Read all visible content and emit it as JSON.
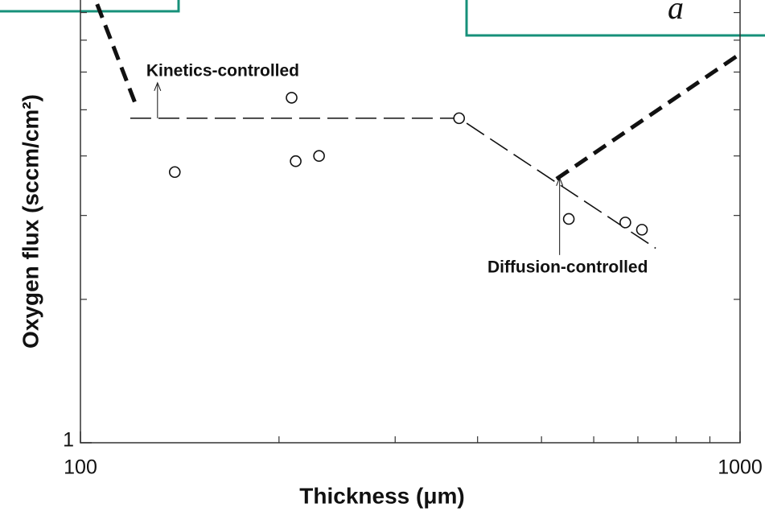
{
  "chart_data": {
    "type": "scatter",
    "xlabel": "Thickness (μm)",
    "ylabel": "Oxygen flux (sccm/cm²)",
    "x": [
      139,
      209,
      212,
      230,
      375,
      550,
      670,
      710
    ],
    "values": [
      3.7,
      5.3,
      3.9,
      4.0,
      4.8,
      2.95,
      2.9,
      2.8
    ],
    "color": "#111111",
    "log_x": true,
    "log_y": true,
    "xlim": [
      100,
      1000
    ],
    "ylim": [
      1,
      8.5
    ],
    "xticks": [
      100,
      1000
    ],
    "yticks": [
      1
    ],
    "x_minor_ticks": [
      200,
      300,
      400,
      500,
      600,
      700,
      800,
      900
    ],
    "y_minor_ticks": [
      2,
      3,
      4,
      5,
      6,
      7,
      8
    ],
    "lines": [
      {
        "style": "thin",
        "x": [
          119,
          375,
          745
        ],
        "y": [
          4.8,
          4.8,
          2.56
        ]
      },
      {
        "style": "thick",
        "x": [
          106,
          122
        ],
        "y": [
          8.33,
          5.02
        ]
      },
      {
        "style": "thick",
        "x": [
          527,
          1000
        ],
        "y": [
          3.58,
          6.55
        ]
      }
    ],
    "annotations": [
      {
        "text": "Kinetics-controlled",
        "x": 122,
        "y": 4.8
      },
      {
        "text": "Diffusion-controlled",
        "x": 515,
        "y": 3.6
      }
    ]
  },
  "overlay": {
    "text": "a"
  }
}
